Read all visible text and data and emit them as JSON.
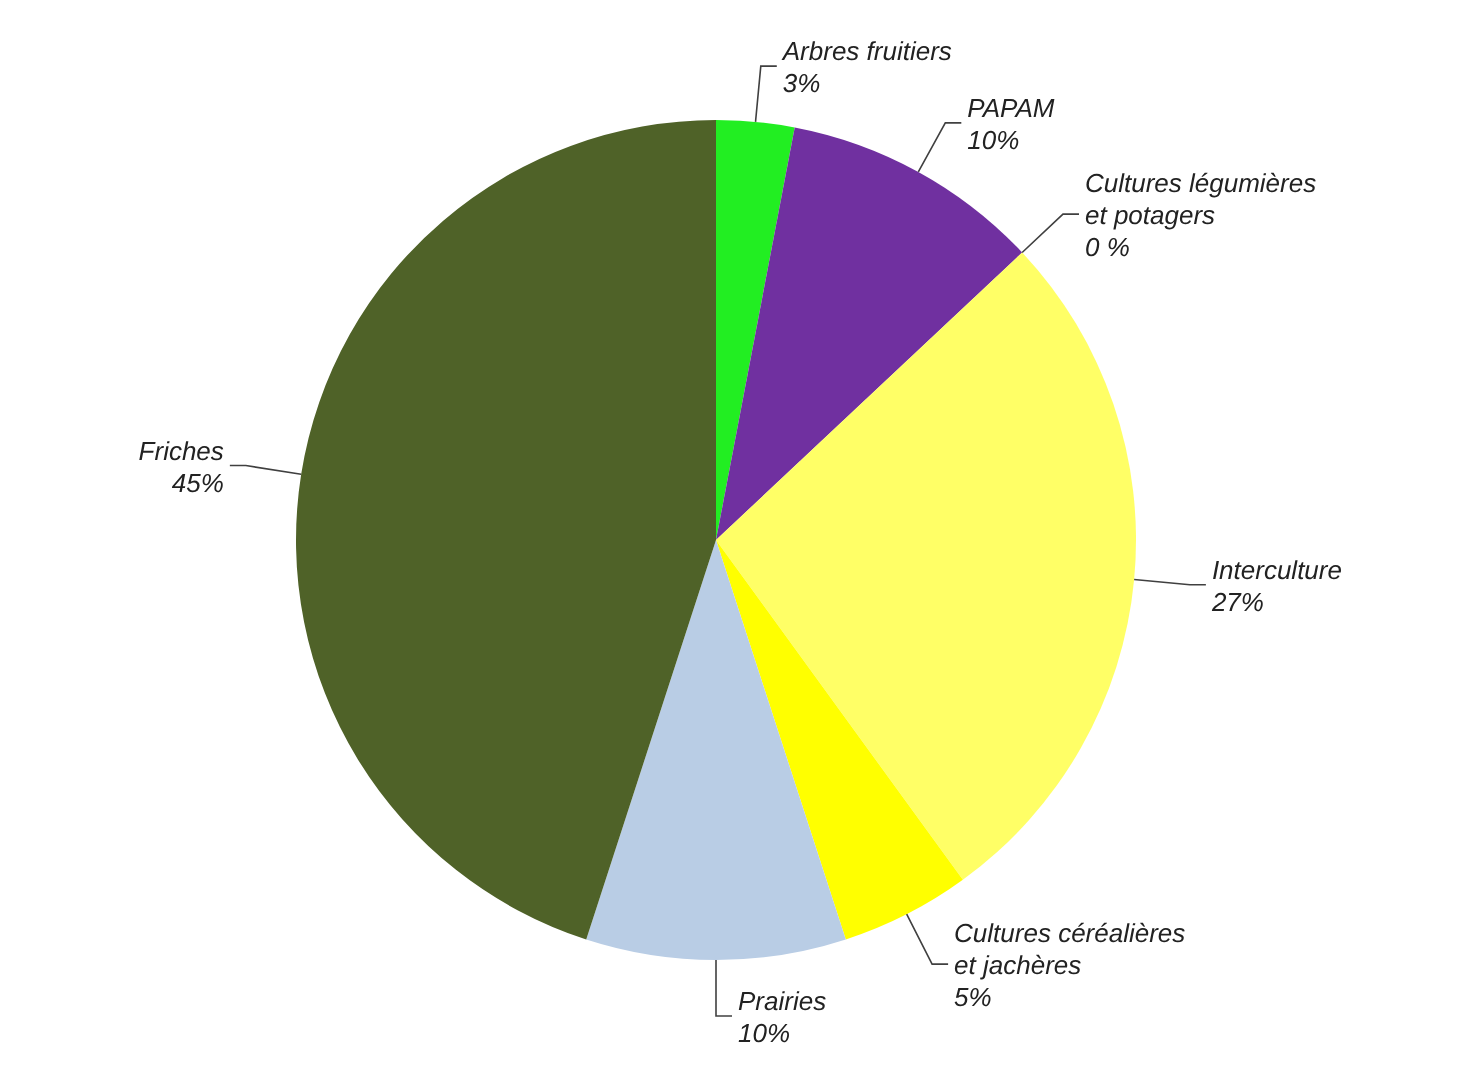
{
  "chart_data": {
    "type": "pie",
    "categories": [
      "Arbres fruitiers",
      "PAPAM",
      "Cultures légumières et potagers",
      "Interculture",
      "Cultures céréalières et jachères",
      "Prairies",
      "Friches"
    ],
    "values": [
      3,
      10,
      0,
      27,
      5,
      10,
      45
    ],
    "value_labels": [
      "3%",
      "10%",
      "0 %",
      "27%",
      "5%",
      "10%",
      "45%"
    ],
    "colors": [
      "#22ee22",
      "#7030a0",
      "#f79646",
      "#ffff66",
      "#ffff00",
      "#b9cde5",
      "#4f6228"
    ]
  }
}
